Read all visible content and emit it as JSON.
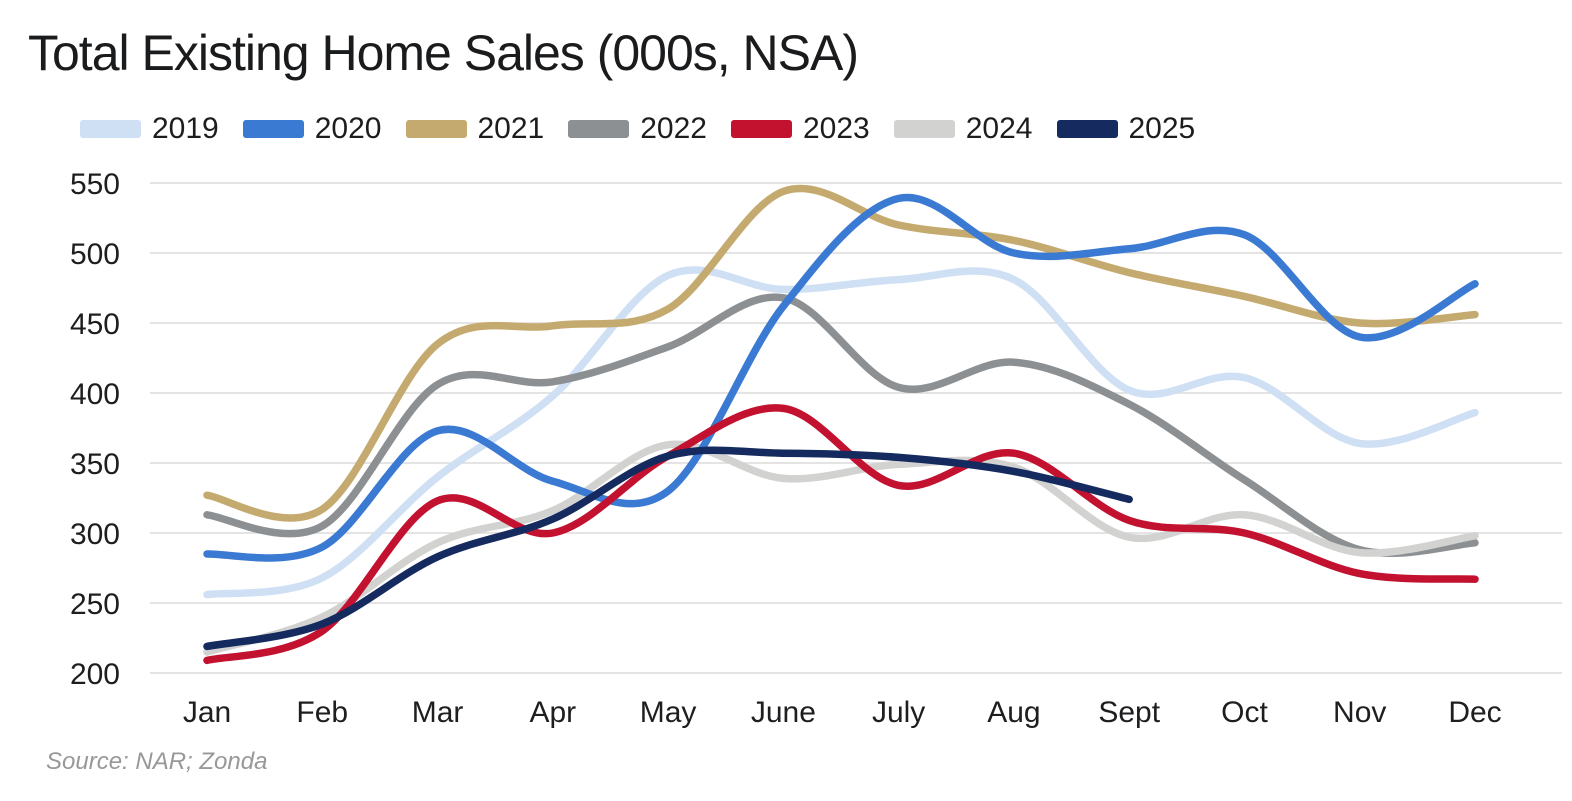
{
  "page": {
    "title": "Total Existing Home Sales (000s, NSA)",
    "source": "Source: NAR; Zonda"
  },
  "chart_data": {
    "type": "line",
    "title": "Total Existing Home Sales (000s, NSA)",
    "units": "thousands of homes, not seasonally adjusted",
    "categories": [
      "Jan",
      "Feb",
      "Mar",
      "Apr",
      "May",
      "June",
      "July",
      "Aug",
      "Sept",
      "Oct",
      "Nov",
      "Dec"
    ],
    "y_axis": {
      "min": 200,
      "max": 550,
      "tick_step": 50,
      "ticks": [
        550,
        500,
        450,
        400,
        350,
        300,
        250,
        200
      ]
    },
    "grid": true,
    "legend_position": "top",
    "line_smoothing": true,
    "series": [
      {
        "name": "2019",
        "color": "#cfe0f4",
        "values": [
          256,
          268,
          340,
          398,
          484,
          474,
          481,
          481,
          402,
          411,
          364,
          386
        ]
      },
      {
        "name": "2020",
        "color": "#3b7ad3",
        "values": [
          285,
          290,
          373,
          337,
          330,
          462,
          539,
          500,
          503,
          513,
          440,
          478
        ]
      },
      {
        "name": "2021",
        "color": "#c5aa6f",
        "values": [
          327,
          317,
          435,
          448,
          460,
          544,
          520,
          509,
          486,
          469,
          450,
          456
        ]
      },
      {
        "name": "2022",
        "color": "#8d9093",
        "values": [
          313,
          305,
          406,
          408,
          433,
          468,
          404,
          422,
          392,
          338,
          288,
          293
        ]
      },
      {
        "name": "2023",
        "color": "#c31230",
        "values": [
          209,
          230,
          323,
          300,
          355,
          389,
          334,
          357,
          309,
          300,
          271,
          267
        ]
      },
      {
        "name": "2024",
        "color": "#d2d2d1",
        "values": [
          215,
          240,
          293,
          316,
          363,
          339,
          349,
          347,
          297,
          313,
          286,
          298
        ]
      },
      {
        "name": "2025",
        "color": "#152a5f",
        "values": [
          219,
          235,
          283,
          310,
          355,
          357,
          354,
          344,
          324
        ]
      }
    ]
  }
}
